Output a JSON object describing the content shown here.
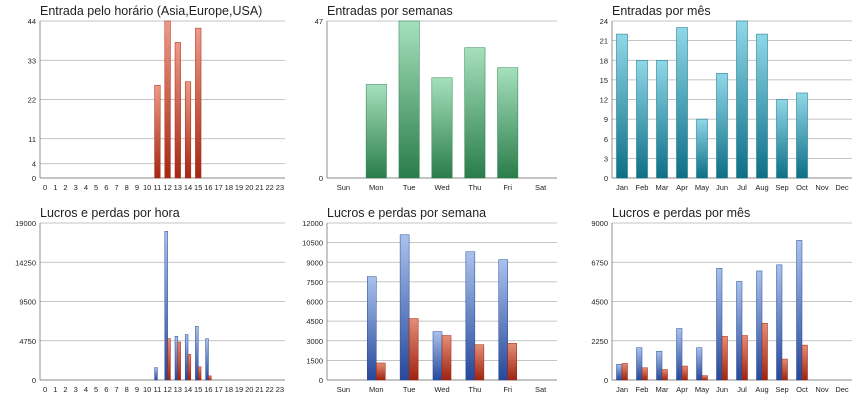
{
  "colors": {
    "grid": "#b0b0b0",
    "axis": "#777777",
    "red_light": "#ee9a88",
    "red_dark": "#a52812",
    "green_light": "#a6e0bd",
    "green_dark": "#2a7d4a",
    "teal_light": "#8fd8e8",
    "teal_dark": "#0d6f86",
    "blue_light": "#a9c2ec",
    "blue_dark": "#27489a",
    "loss_light": "#e48d77",
    "loss_dark": "#9e2410"
  },
  "chart_data": [
    {
      "type": "bar",
      "title": "Entrada pelo horário (Asia,Europe,USA)",
      "categories": [
        "0",
        "1",
        "2",
        "3",
        "4",
        "5",
        "6",
        "7",
        "8",
        "9",
        "10",
        "11",
        "12",
        "13",
        "14",
        "15",
        "16",
        "17",
        "18",
        "19",
        "20",
        "21",
        "22",
        "23"
      ],
      "series": [
        {
          "values": [
            0,
            0,
            0,
            0,
            0,
            0,
            0,
            0,
            0,
            0,
            0,
            26,
            44,
            38,
            27,
            42,
            0,
            0,
            0,
            0,
            0,
            0,
            0,
            0
          ],
          "palette": "red"
        }
      ],
      "ylim": [
        0,
        44
      ],
      "yticks": [
        0,
        4,
        11,
        22,
        33,
        44
      ],
      "grid": true
    },
    {
      "type": "bar",
      "title": "Entradas por semanas",
      "categories": [
        "Sun",
        "Mon",
        "Tue",
        "Wed",
        "Thu",
        "Fri",
        "Sat"
      ],
      "series": [
        {
          "values": [
            0,
            28,
            47,
            30,
            39,
            33,
            0
          ],
          "palette": "green"
        }
      ],
      "ylim": [
        0,
        47
      ],
      "yticks": [
        0,
        47
      ],
      "grid": true
    },
    {
      "type": "bar",
      "title": "Entradas por mês",
      "categories": [
        "Jan",
        "Feb",
        "Mar",
        "Apr",
        "May",
        "Jun",
        "Jul",
        "Aug",
        "Sep",
        "Oct",
        "Nov",
        "Dec"
      ],
      "series": [
        {
          "values": [
            22,
            18,
            18,
            23,
            9,
            16,
            24,
            22,
            12,
            13,
            0,
            0
          ],
          "palette": "teal"
        }
      ],
      "ylim": [
        0,
        24
      ],
      "yticks": [
        0,
        3,
        6,
        9,
        12,
        15,
        18,
        21,
        24
      ],
      "grid": true
    },
    {
      "type": "bar",
      "title": "Lucros e perdas por hora",
      "categories": [
        "0",
        "1",
        "2",
        "3",
        "4",
        "5",
        "6",
        "7",
        "8",
        "9",
        "10",
        "11",
        "12",
        "13",
        "14",
        "15",
        "16",
        "17",
        "18",
        "19",
        "20",
        "21",
        "22",
        "23"
      ],
      "series": [
        {
          "values": [
            0,
            0,
            0,
            0,
            0,
            0,
            0,
            0,
            0,
            0,
            0,
            1500,
            18000,
            5300,
            5500,
            6500,
            5000,
            0,
            0,
            0,
            0,
            0,
            0,
            0
          ],
          "palette": "blue"
        },
        {
          "values": [
            0,
            0,
            0,
            0,
            0,
            0,
            0,
            0,
            0,
            0,
            0,
            0,
            5000,
            4600,
            3100,
            1600,
            500,
            0,
            0,
            0,
            0,
            0,
            0,
            0
          ],
          "palette": "loss"
        }
      ],
      "ylim": [
        0,
        19000
      ],
      "yticks": [
        0,
        4750,
        9500,
        14250,
        19000
      ],
      "grid": true
    },
    {
      "type": "bar",
      "title": "Lucros e perdas por semana",
      "categories": [
        "Sun",
        "Mon",
        "Tue",
        "Wed",
        "Thu",
        "Fri",
        "Sat"
      ],
      "series": [
        {
          "values": [
            0,
            7900,
            11100,
            3700,
            9800,
            9200,
            0
          ],
          "palette": "blue"
        },
        {
          "values": [
            0,
            1300,
            4700,
            3400,
            2700,
            2800,
            0
          ],
          "palette": "loss"
        }
      ],
      "ylim": [
        0,
        12000
      ],
      "yticks": [
        0,
        1500,
        3000,
        4500,
        6000,
        7500,
        9000,
        10500,
        12000
      ],
      "grid": true
    },
    {
      "type": "bar",
      "title": "Lucros e perdas por mês",
      "categories": [
        "Jan",
        "Feb",
        "Mar",
        "Apr",
        "May",
        "Jun",
        "Jul",
        "Aug",
        "Sep",
        "Oct",
        "Nov",
        "Dec"
      ],
      "series": [
        {
          "values": [
            900,
            1850,
            1650,
            2950,
            1850,
            6400,
            5650,
            6250,
            6600,
            8000,
            0,
            0
          ],
          "palette": "blue"
        },
        {
          "values": [
            950,
            700,
            600,
            800,
            250,
            2500,
            2550,
            3250,
            1200,
            2000,
            0,
            0
          ],
          "palette": "loss"
        }
      ],
      "ylim": [
        0,
        9000
      ],
      "yticks": [
        0,
        2250,
        4500,
        6750,
        9000
      ],
      "grid": true
    }
  ]
}
